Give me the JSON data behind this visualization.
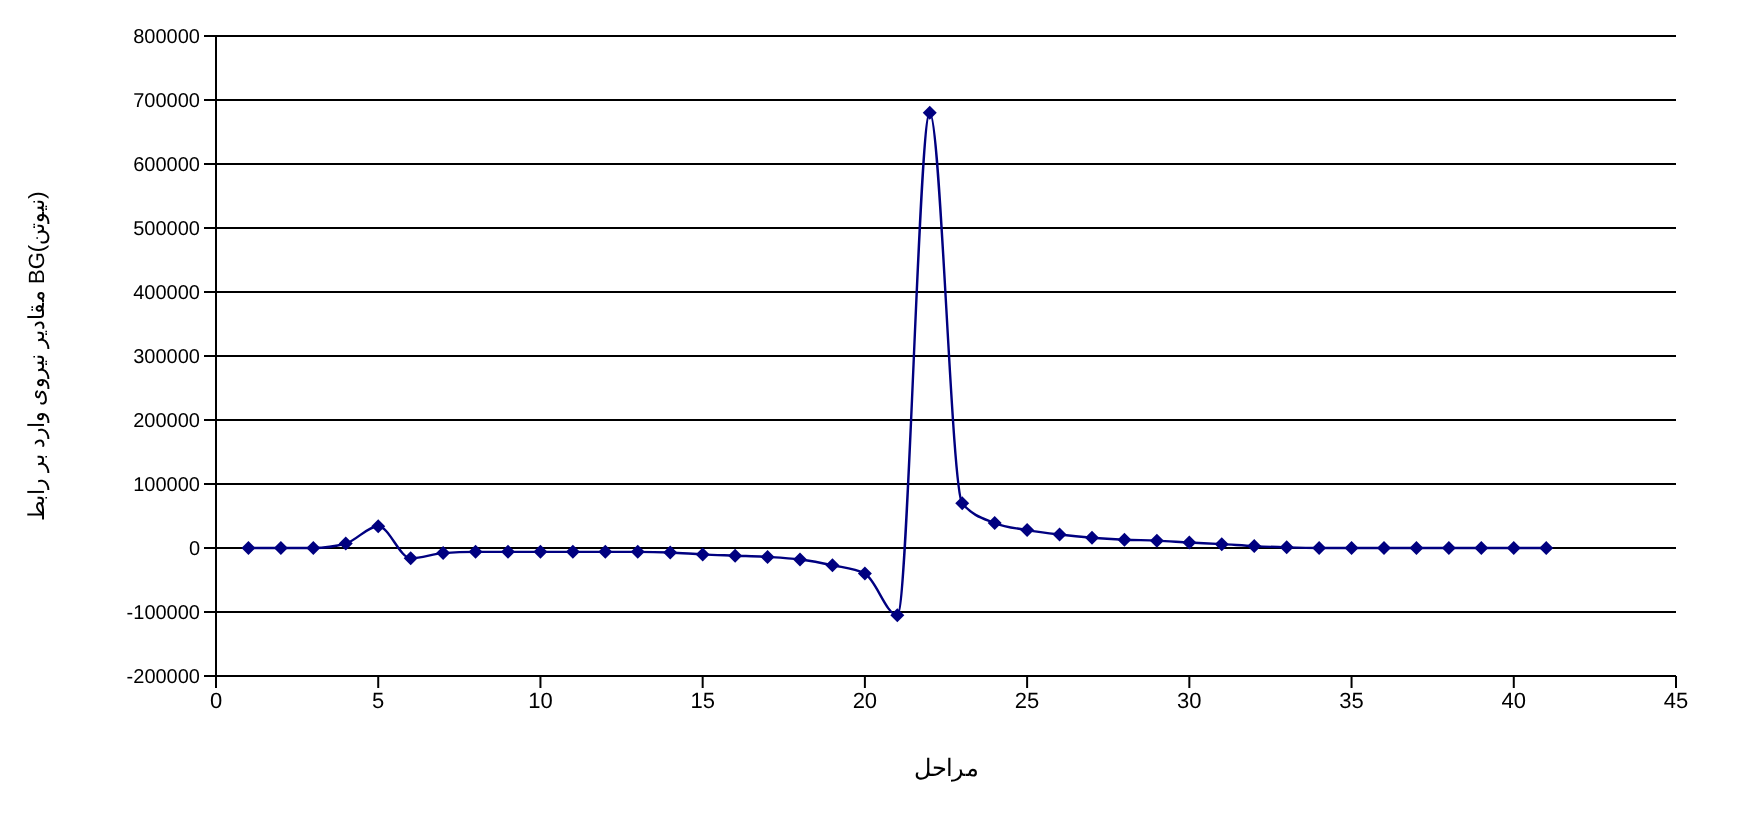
{
  "chart_data": {
    "type": "line",
    "xlabel": "مراحل",
    "ylabel": "مقادیر نیروی وارد بر رابط BG(نیوتن)",
    "x": [
      1,
      2,
      3,
      4,
      5,
      6,
      7,
      8,
      9,
      10,
      11,
      12,
      13,
      14,
      15,
      16,
      17,
      18,
      19,
      20,
      21,
      22,
      23,
      24,
      25,
      26,
      27,
      28,
      29,
      30,
      31,
      32,
      33,
      34,
      35,
      36,
      37,
      38,
      39,
      40,
      41
    ],
    "series": [
      {
        "color": "#000080",
        "values": [
          0,
          0,
          0,
          7000,
          34000,
          -16000,
          -8000,
          -6000,
          -6000,
          -6000,
          -6000,
          -6000,
          -6000,
          -7000,
          -10000,
          -12000,
          -14000,
          -18000,
          -27000,
          -40000,
          -105000,
          680000,
          70000,
          39000,
          28000,
          21000,
          16000,
          13000,
          11500,
          8500,
          6000,
          3000,
          1000,
          0,
          0,
          0,
          0,
          0,
          0,
          0,
          0
        ]
      }
    ],
    "xlim": [
      0,
      45
    ],
    "xticks": [
      0,
      5,
      10,
      15,
      20,
      25,
      30,
      35,
      40,
      45
    ],
    "ylim": [
      -200000,
      800000
    ],
    "yticks": [
      -200000,
      -100000,
      0,
      100000,
      200000,
      300000,
      400000,
      500000,
      600000,
      700000,
      800000
    ],
    "grid": "y",
    "marker": "diamond",
    "line_style": "solid",
    "legend": false
  }
}
